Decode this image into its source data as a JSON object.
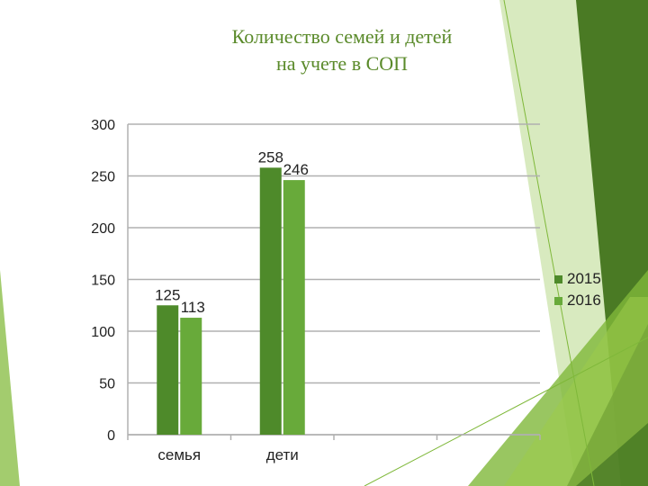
{
  "title_line1": "Количество семей и детей",
  "title_line2": "на учете в СОП",
  "colors": {
    "s2015": "#4e8a2a",
    "s2016": "#68aa3a",
    "title": "#5a8a2a",
    "deco_dark": "#4a7a24",
    "deco_mid": "#7fb83a",
    "deco_light": "#b8d98a"
  },
  "chart_data": {
    "type": "bar",
    "categories": [
      "семья",
      "дети"
    ],
    "series": [
      {
        "name": "2015",
        "values": [
          125,
          258
        ]
      },
      {
        "name": "2016",
        "values": [
          113,
          246
        ]
      }
    ],
    "ylim": [
      0,
      300
    ],
    "yticks": [
      0,
      50,
      100,
      150,
      200,
      250,
      300
    ],
    "ytick_labels": [
      "0",
      "50",
      "100",
      "150",
      "200",
      "250",
      "300"
    ],
    "grid": true,
    "legend_position": "right",
    "data_labels": [
      [
        "125",
        "258"
      ],
      [
        "113",
        "246"
      ]
    ]
  }
}
